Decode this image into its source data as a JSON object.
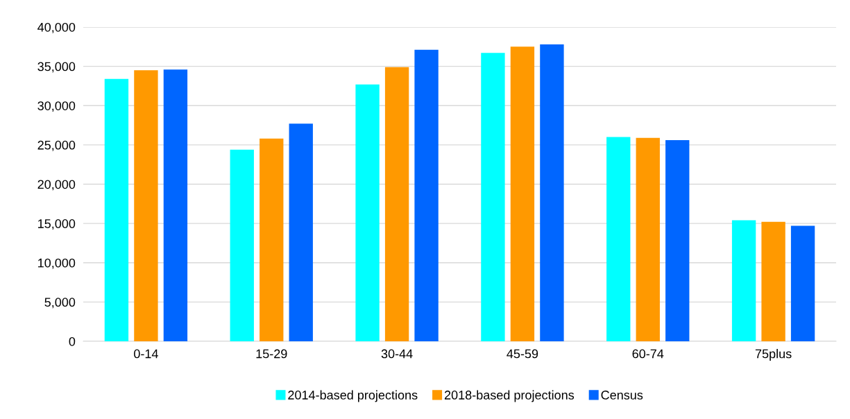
{
  "chart_data": {
    "type": "bar",
    "categories": [
      "0-14",
      "15-29",
      "30-44",
      "45-59",
      "60-74",
      "75plus"
    ],
    "series": [
      {
        "name": "2014-based projections",
        "color": "#00ffff",
        "values": [
          33400,
          24400,
          32700,
          36700,
          26000,
          15400
        ]
      },
      {
        "name": "2018-based projections",
        "color": "#ff9900",
        "values": [
          34500,
          25800,
          34900,
          37500,
          25900,
          15200
        ]
      },
      {
        "name": "Census",
        "color": "#0066ff",
        "values": [
          34600,
          27700,
          37100,
          37800,
          25600,
          14700
        ]
      }
    ],
    "ylim": [
      0,
      40000
    ],
    "yticks": [
      {
        "value": 0,
        "label": "0"
      },
      {
        "value": 5000,
        "label": "5,000"
      },
      {
        "value": 10000,
        "label": "10,000"
      },
      {
        "value": 15000,
        "label": "15,000"
      },
      {
        "value": 20000,
        "label": "20,000"
      },
      {
        "value": 25000,
        "label": "25,000"
      },
      {
        "value": 30000,
        "label": "30,000"
      },
      {
        "value": 35000,
        "label": "35,000"
      },
      {
        "value": 40000,
        "label": "40,000"
      }
    ],
    "grid": "y",
    "legend": "bottom"
  }
}
